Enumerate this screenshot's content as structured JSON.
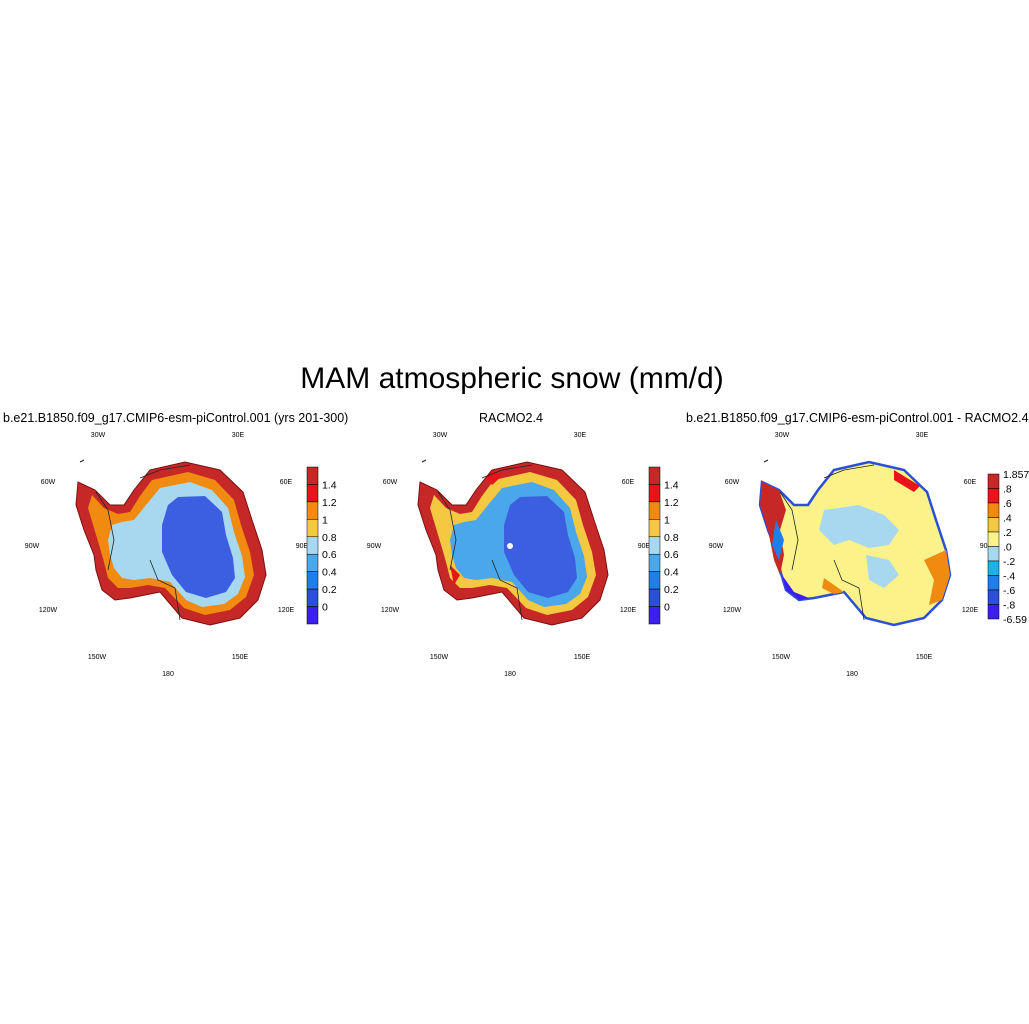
{
  "title": "MAM atmospheric snow (mm/d)",
  "panels": [
    {
      "title": "b.e21.B1850.f09_g17.CMIP6-esm-piControl.001 (yrs 201-300)",
      "colorbar_labels": [
        "1.4",
        "1.2",
        "1",
        "0.8",
        "0.6",
        "0.4",
        "0.2",
        "0"
      ],
      "colorbar_colors": [
        "#c62828",
        "#e8141a",
        "#f08a10",
        "#f5c842",
        "#a8d8f0",
        "#4aa8ea",
        "#1f7ee8",
        "#2b4fd6",
        "#3c1ef0"
      ]
    },
    {
      "title": "RACMO2.4",
      "colorbar_labels": [
        "1.4",
        "1.2",
        "1",
        "0.8",
        "0.6",
        "0.4",
        "0.2",
        "0"
      ],
      "colorbar_colors": [
        "#c62828",
        "#e8141a",
        "#f08a10",
        "#f5c842",
        "#a8d8f0",
        "#4aa8ea",
        "#1f7ee8",
        "#2b4fd6",
        "#3c1ef0"
      ]
    },
    {
      "title": "b.e21.B1850.f09_g17.CMIP6-esm-piControl.001 - RACMO2.4",
      "colorbar_labels": [
        "1.857",
        ".8",
        ".6",
        ".4",
        ".2",
        ".0",
        "-.2",
        "-.4",
        "-.6",
        "-.8",
        "-6.59"
      ],
      "colorbar_colors": [
        "#c62828",
        "#e8141a",
        "#f08a10",
        "#f5c842",
        "#fbf38a",
        "#a8d8f0",
        "#1fb0e8",
        "#1f7ee8",
        "#2b4fd6",
        "#3c1ef0"
      ]
    }
  ],
  "lon_labels": [
    "30W",
    "30E",
    "60W",
    "60E",
    "90W",
    "90E",
    "120W",
    "120E",
    "150W",
    "150E",
    "180"
  ]
}
